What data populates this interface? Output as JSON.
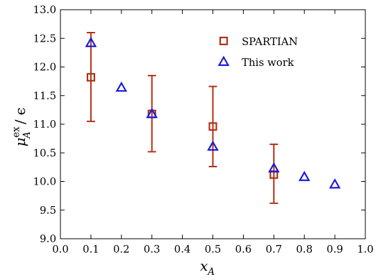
{
  "chart_data": {
    "type": "scatter",
    "title": "",
    "xlabel": "x_A",
    "ylabel": "μ_A^ex / ϵ",
    "xlim": [
      0.0,
      1.0
    ],
    "ylim": [
      9.0,
      13.0
    ],
    "xticks": [
      "0.0",
      "0.1",
      "0.2",
      "0.3",
      "0.4",
      "0.5",
      "0.6",
      "0.7",
      "0.8",
      "0.9",
      "1.0"
    ],
    "yticks": [
      "9.0",
      "9.5",
      "10.0",
      "10.5",
      "11.0",
      "11.5",
      "12.0",
      "12.5",
      "13.0"
    ],
    "grid": false,
    "legend_position": "top-right",
    "series": [
      {
        "name": "SPARTIAN",
        "marker": "open-square",
        "color": "#b22e12",
        "x": [
          0.1,
          0.3,
          0.5,
          0.7
        ],
        "y": [
          11.82,
          11.18,
          10.96,
          10.12
        ],
        "yerr_low": [
          11.05,
          10.52,
          10.26,
          9.62
        ],
        "yerr_high": [
          12.6,
          11.85,
          11.66,
          10.65
        ]
      },
      {
        "name": "This work",
        "marker": "open-triangle",
        "color": "#1a1adb",
        "x": [
          0.1,
          0.2,
          0.3,
          0.5,
          0.7,
          0.8,
          0.9
        ],
        "y": [
          12.42,
          11.64,
          11.18,
          10.61,
          10.23,
          10.08,
          9.95
        ]
      }
    ]
  }
}
